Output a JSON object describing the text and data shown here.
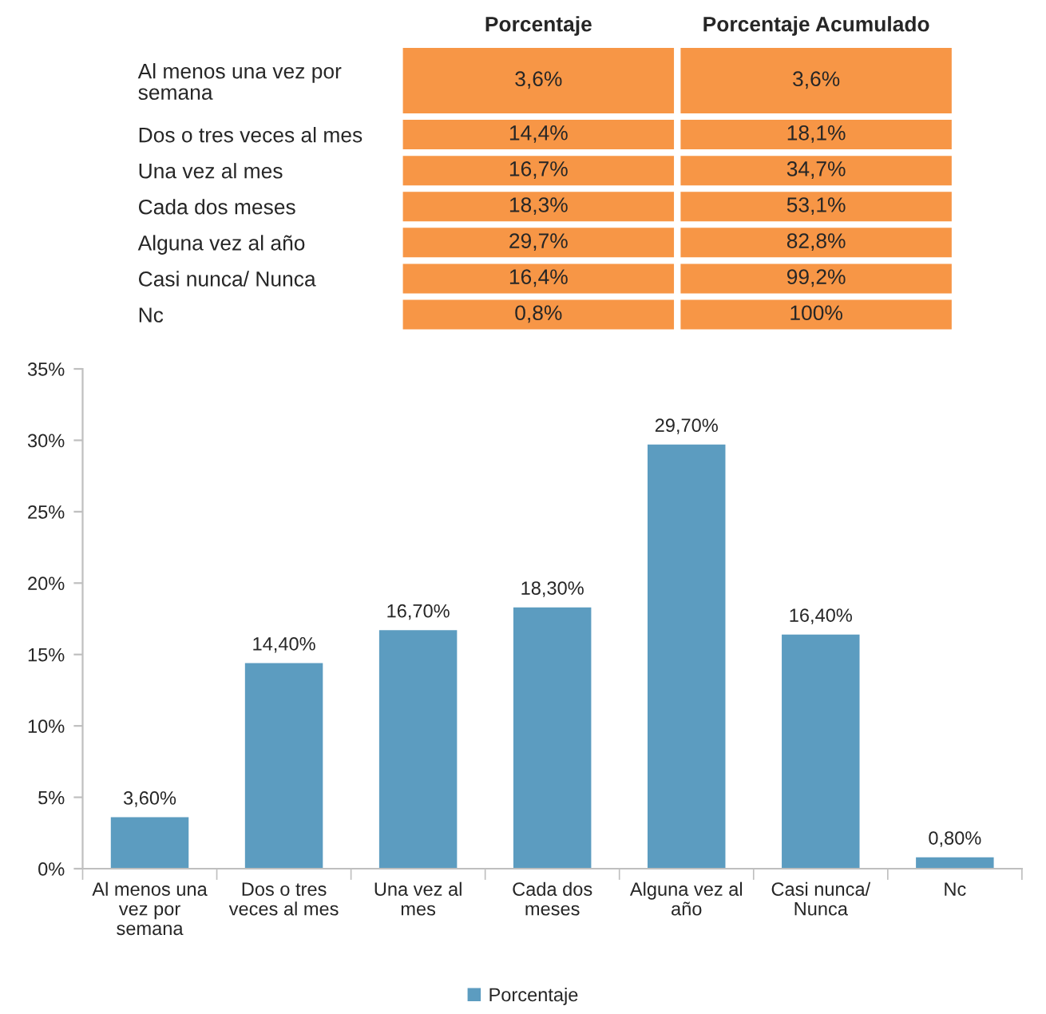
{
  "chart_data": [
    {
      "type": "other",
      "categories": [
        "Porcentaje",
        "Porcentaje Acumulado"
      ],
      "y_categories": [
        "Al menos una vez por\nsemana",
        "Dos o tres veces al mes",
        "Una vez al mes",
        "Cada dos meses",
        "Alguna vez al año",
        "Casi nunca/ Nunca",
        "Nc"
      ],
      "cell_labels": [
        [
          "3,6%",
          "3,6%"
        ],
        [
          "14,4%",
          "18,1%"
        ],
        [
          "16,7%",
          "34,7%"
        ],
        [
          "18,3%",
          "53,1%"
        ],
        [
          "29,7%",
          "82,8%"
        ],
        [
          "16,4%",
          "99,2%"
        ],
        [
          "0,8%",
          "100%"
        ]
      ],
      "color": "#f79646"
    },
    {
      "type": "bar",
      "categories": [
        "Al menos una\nvez por\nsemana",
        "Dos o tres\nveces al mes",
        "Una vez al\nmes",
        "Cada dos\nmeses",
        "Alguna vez al\naño",
        "Casi nunca/\nNunca",
        "Nc"
      ],
      "series": [
        {
          "name": "Porcentaje",
          "color": "#5c9cc0",
          "values": [
            3.6,
            14.4,
            16.7,
            18.3,
            29.7,
            16.4,
            0.8
          ],
          "value_labels": [
            "3,60%",
            "14,40%",
            "16,70%",
            "18,30%",
            "29,70%",
            "16,40%",
            "0,80%"
          ]
        }
      ],
      "ylim": [
        0,
        35
      ],
      "yticks": [
        {
          "value": 0,
          "label": "0%"
        },
        {
          "value": 5,
          "label": "5%"
        },
        {
          "value": 10,
          "label": "10%"
        },
        {
          "value": 15,
          "label": "15%"
        },
        {
          "value": 20,
          "label": "20%"
        },
        {
          "value": 25,
          "label": "25%"
        },
        {
          "value": 30,
          "label": "30%"
        },
        {
          "value": 35,
          "label": "35%"
        }
      ],
      "legend": "bottom"
    }
  ]
}
